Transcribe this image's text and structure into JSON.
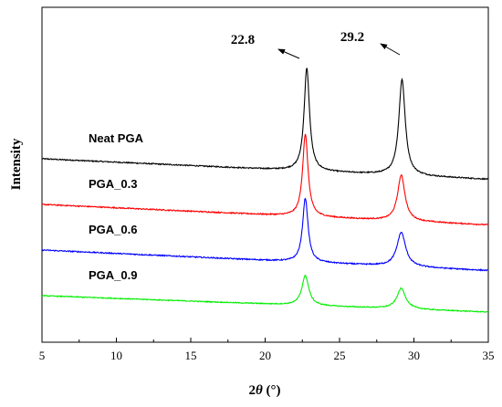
{
  "chart_data": {
    "type": "line",
    "title": "",
    "xlabel": "2θ (°)",
    "xlabel_parts": {
      "symbol_num": "2",
      "symbol_var": "θ",
      "unit": " (°)"
    },
    "ylabel": "Intensity",
    "xlim": [
      5,
      35
    ],
    "x_ticks": [
      5,
      10,
      15,
      20,
      25,
      30,
      35
    ],
    "y_ticks_labeled": false,
    "grid": false,
    "legend": "inline labels left of each trace",
    "annotations": [
      {
        "text": "22.8",
        "x": 22.8
      },
      {
        "text": "29.2",
        "x": 29.2
      }
    ],
    "series": [
      {
        "name": "Neat PGA",
        "color": "#000000",
        "offset": 3.0,
        "peaks": [
          {
            "x": 22.8,
            "height": 2.25,
            "width": 0.22
          },
          {
            "x": 29.2,
            "height": 2.1,
            "width": 0.26
          }
        ],
        "slope": -0.015,
        "noise": 0.025
      },
      {
        "name": "PGA_0.3",
        "color": "#ff0000",
        "offset": 2.0,
        "peaks": [
          {
            "x": 22.7,
            "height": 1.8,
            "width": 0.22
          },
          {
            "x": 29.15,
            "height": 1.0,
            "width": 0.3
          }
        ],
        "slope": -0.015,
        "noise": 0.025
      },
      {
        "name": "PGA_0.6",
        "color": "#0000ff",
        "offset": 1.0,
        "peaks": [
          {
            "x": 22.7,
            "height": 1.4,
            "width": 0.22
          },
          {
            "x": 29.15,
            "height": 0.75,
            "width": 0.35
          }
        ],
        "slope": -0.015,
        "noise": 0.025
      },
      {
        "name": "PGA_0.9",
        "color": "#00ee00",
        "offset": 0.0,
        "peaks": [
          {
            "x": 22.7,
            "height": 0.65,
            "width": 0.28
          },
          {
            "x": 29.15,
            "height": 0.45,
            "width": 0.35
          }
        ],
        "slope": -0.012,
        "noise": 0.02
      }
    ]
  }
}
